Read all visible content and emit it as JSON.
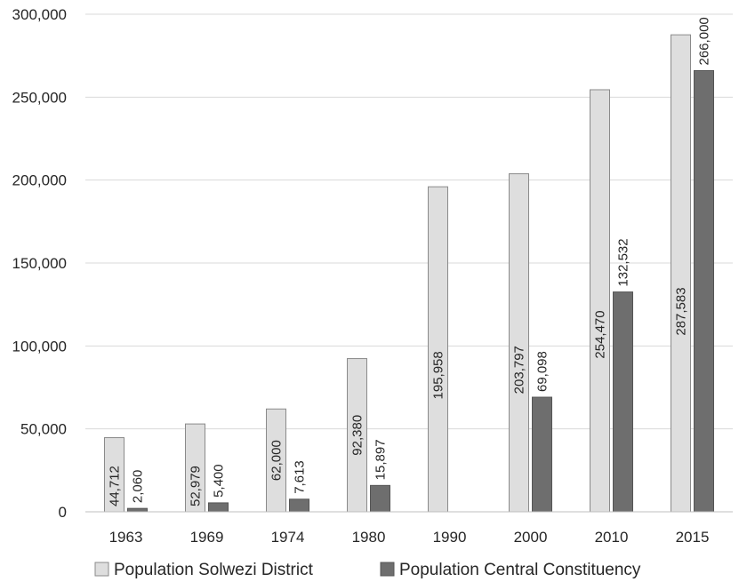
{
  "chart_data": {
    "type": "bar",
    "categories": [
      "1963",
      "1969",
      "1974",
      "1980",
      "1990",
      "2000",
      "2010",
      "2015"
    ],
    "series": [
      {
        "name": "Population Solwezi District",
        "values": [
          44712,
          52979,
          62000,
          92380,
          195958,
          203797,
          254470,
          287583
        ],
        "labels": [
          "44,712",
          "52,979",
          "62,000",
          "92,380",
          "195,958",
          "203,797",
          "254,470",
          "287,583"
        ],
        "color": "#dedede"
      },
      {
        "name": "Population Central Constituency",
        "values": [
          2060,
          5400,
          7613,
          15897,
          null,
          69098,
          132532,
          266000
        ],
        "labels": [
          "2,060",
          "5,400",
          "7,613",
          "15,897",
          "",
          "69,098",
          "132,532",
          "266,000"
        ],
        "color": "#6e6e6e"
      }
    ],
    "ylim": [
      0,
      300000
    ],
    "yticks": [
      0,
      50000,
      100000,
      150000,
      200000,
      250000,
      300000
    ],
    "ytick_labels": [
      "0",
      "50,000",
      "100,000",
      "150,000",
      "200,000",
      "250,000",
      "300,000"
    ],
    "grid": true,
    "legend_position": "bottom"
  }
}
